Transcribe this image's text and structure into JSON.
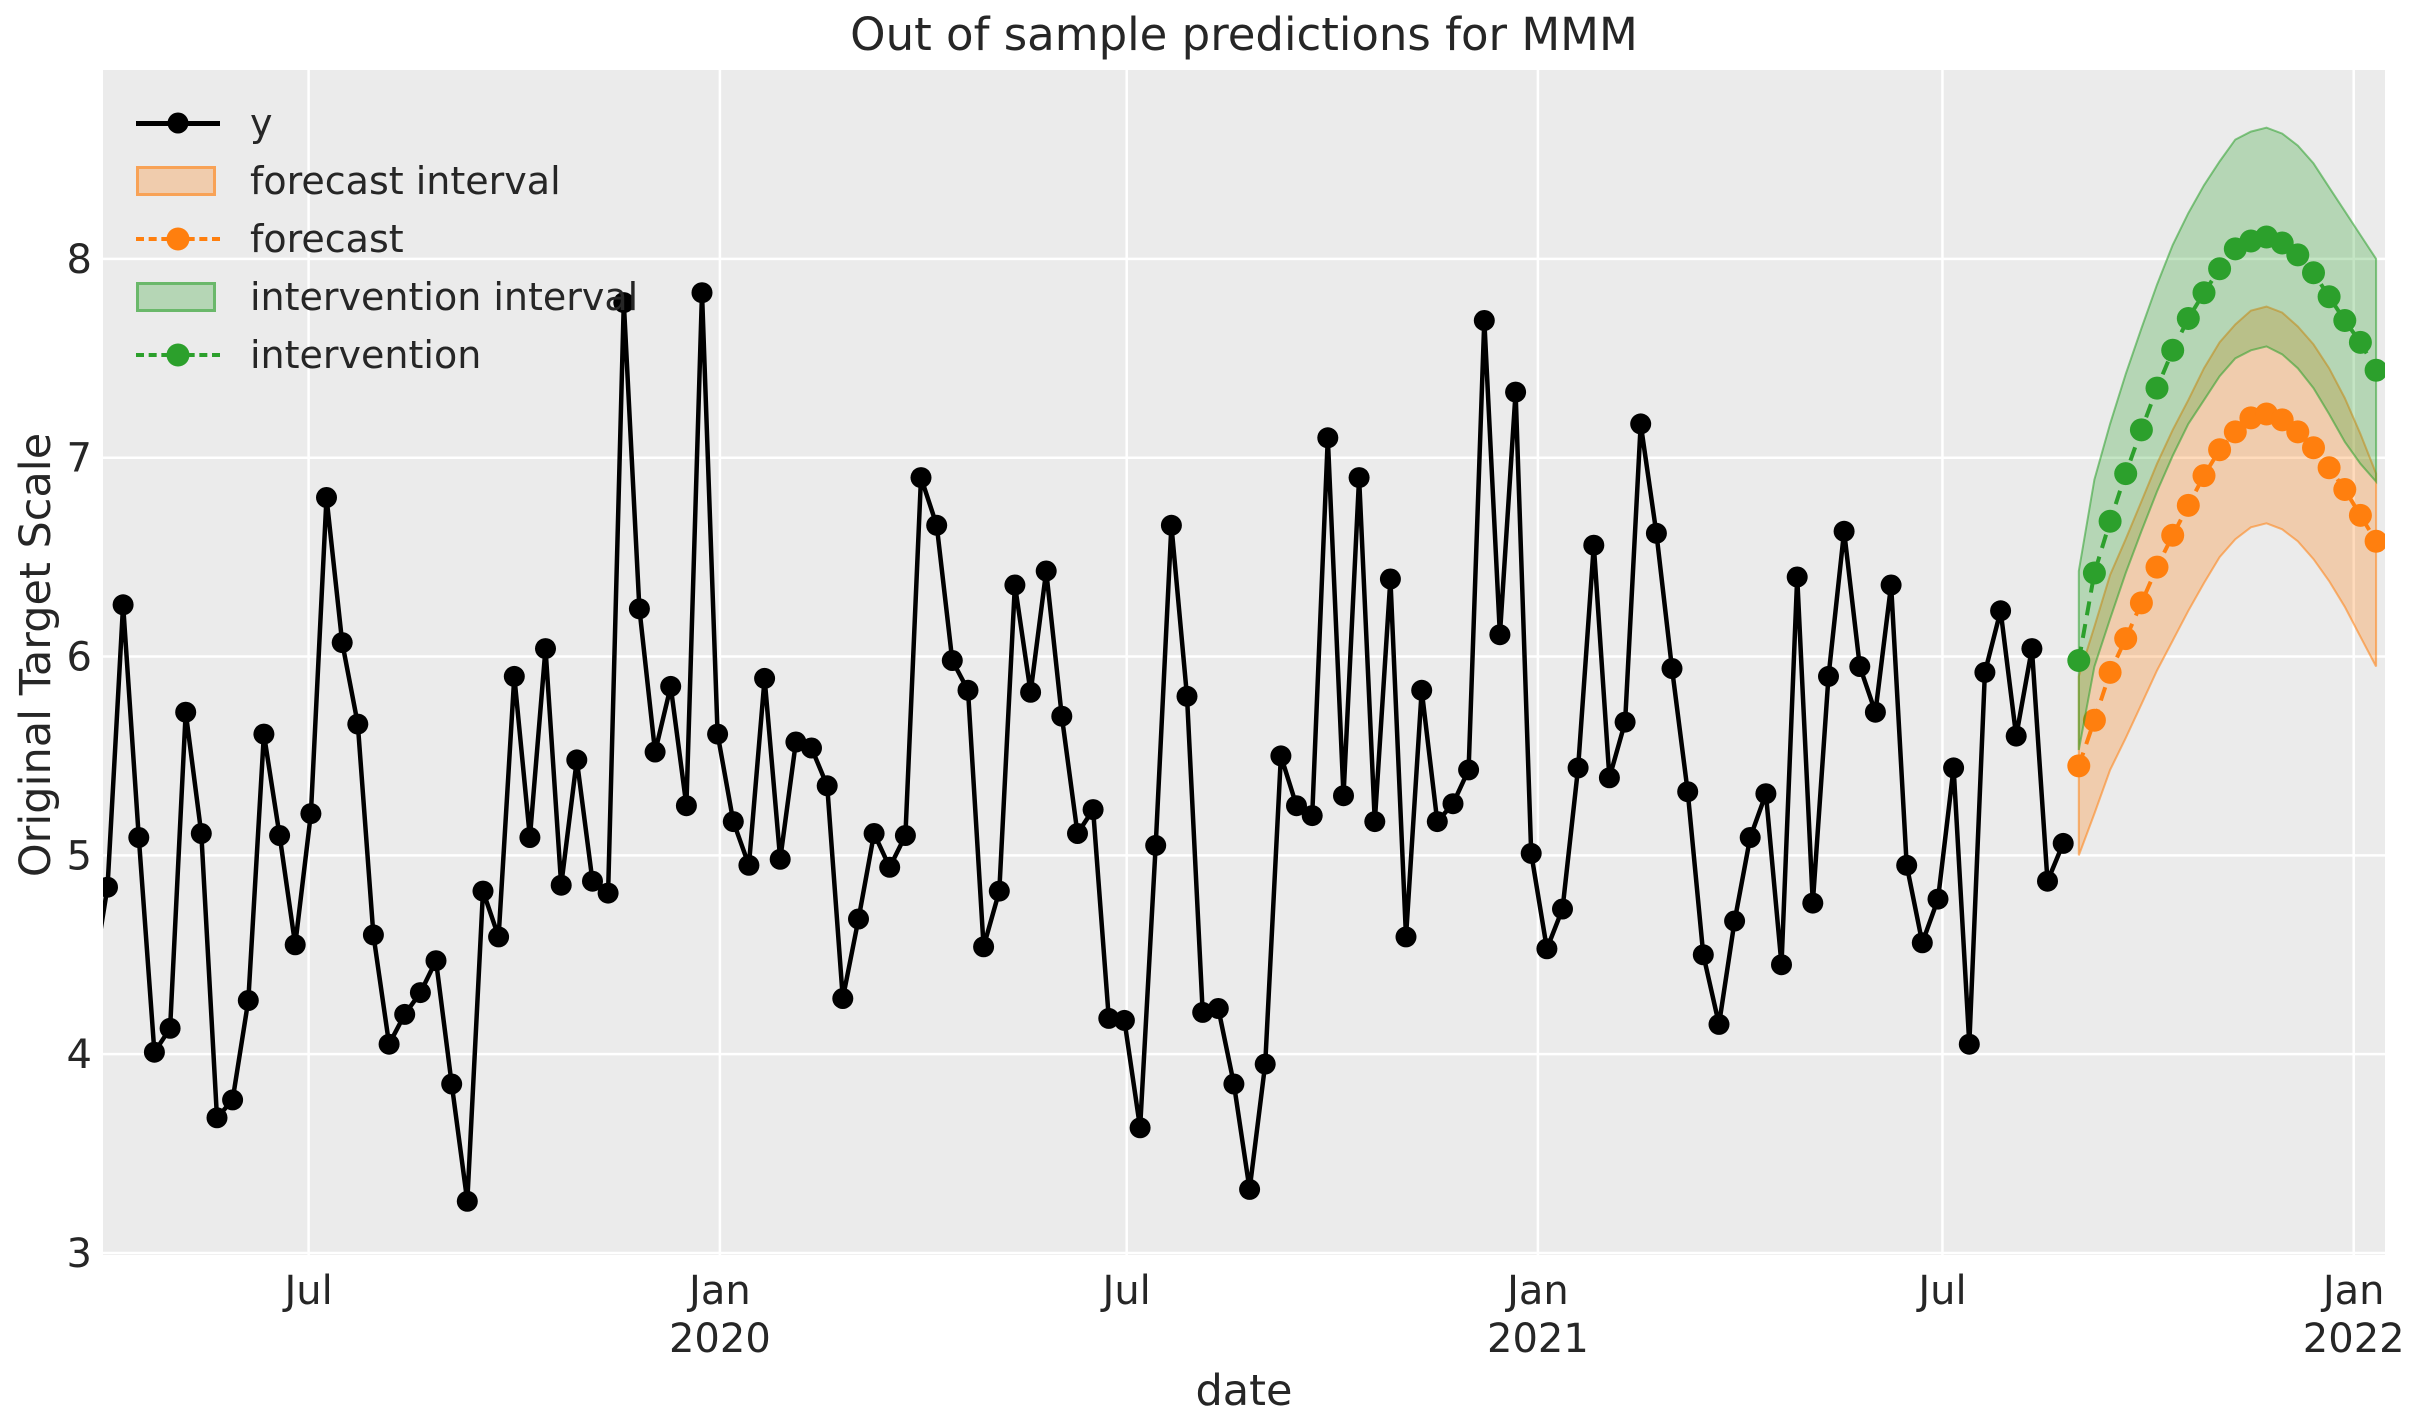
{
  "title": "Out of sample predictions for MMM",
  "chart_data": {
    "type": "line",
    "title": "Out of sample predictions for MMM",
    "xlabel": "date",
    "ylabel": "Original Target Scale",
    "colors": {
      "figure_background": "#ffffff",
      "plot_background": "#ebebeb",
      "grid": "#ffffff",
      "text": "#262626",
      "y_series": "#000000",
      "forecast": "#ff7f0e",
      "intervention": "#2ca02c"
    },
    "xlim": [
      "2019-03-31",
      "2022-01-15"
    ],
    "ylim": [
      2.99,
      8.95
    ],
    "y_ticks": [
      3,
      4,
      5,
      6,
      7,
      8
    ],
    "x_ticks": [
      {
        "date": "2019-07-01",
        "line1": "Jul",
        "line2": ""
      },
      {
        "date": "2020-01-01",
        "line1": "Jan",
        "line2": "2020"
      },
      {
        "date": "2020-07-01",
        "line1": "Jul",
        "line2": ""
      },
      {
        "date": "2021-01-01",
        "line1": "Jan",
        "line2": "2021"
      },
      {
        "date": "2021-07-01",
        "line1": "Jul",
        "line2": ""
      },
      {
        "date": "2022-01-01",
        "line1": "Jan",
        "line2": "2022"
      }
    ],
    "legend": [
      {
        "label": "y",
        "swatch": "line-marker",
        "color": "#000000"
      },
      {
        "label": "forecast interval",
        "swatch": "band",
        "color": "#ff7f0e"
      },
      {
        "label": "forecast",
        "swatch": "dashed-marker",
        "color": "#ff7f0e"
      },
      {
        "label": "intervention interval",
        "swatch": "band",
        "color": "#2ca02c"
      },
      {
        "label": "intervention",
        "swatch": "dashed-marker",
        "color": "#2ca02c"
      }
    ],
    "series": [
      {
        "name": "y",
        "type": "line",
        "color": "#000000",
        "marker": true,
        "dash": false,
        "start_date": "2019-04-02",
        "freq_days": 7,
        "lead_in": {
          "date": "2019-03-26",
          "value": 4.35
        },
        "values": [
          4.84,
          6.26,
          5.09,
          4.01,
          4.13,
          5.72,
          5.11,
          3.68,
          3.77,
          4.27,
          5.61,
          5.1,
          4.55,
          5.21,
          6.8,
          6.07,
          5.66,
          4.6,
          4.05,
          4.2,
          4.31,
          4.47,
          3.85,
          3.26,
          4.82,
          4.59,
          5.9,
          5.09,
          6.04,
          4.85,
          5.48,
          4.87,
          4.81,
          7.78,
          6.24,
          5.52,
          5.85,
          5.25,
          7.83,
          5.61,
          5.17,
          4.95,
          5.89,
          4.98,
          5.57,
          5.54,
          5.35,
          4.28,
          4.68,
          5.11,
          4.94,
          5.1,
          6.9,
          6.66,
          5.98,
          5.83,
          4.54,
          4.82,
          6.36,
          5.82,
          6.43,
          5.7,
          5.11,
          5.23,
          4.18,
          4.17,
          3.63,
          5.05,
          6.66,
          5.8,
          4.21,
          4.23,
          3.85,
          3.32,
          3.95,
          5.5,
          5.25,
          5.2,
          7.1,
          5.3,
          6.9,
          5.17,
          6.39,
          4.59,
          5.83,
          5.17,
          5.26,
          5.43,
          7.69,
          6.11,
          7.33,
          5.01,
          4.53,
          4.73,
          5.44,
          6.56,
          5.39,
          5.67,
          7.17,
          6.62,
          5.94,
          5.32,
          4.5,
          4.15,
          4.67,
          5.09,
          5.31,
          4.45,
          6.4,
          4.76,
          5.9,
          6.63,
          5.95,
          5.72,
          6.36,
          4.95,
          4.56,
          4.78,
          5.44,
          4.05,
          5.92,
          6.23,
          5.6,
          6.04,
          4.87,
          5.06
        ]
      },
      {
        "name": "forecast interval",
        "type": "band",
        "color": "#ff7f0e",
        "fill_opacity": 0.28,
        "edge_opacity": 0.55,
        "start_date": "2021-08-31",
        "freq_days": 7,
        "lower": [
          5.0,
          5.21,
          5.43,
          5.59,
          5.76,
          5.93,
          6.08,
          6.23,
          6.37,
          6.5,
          6.59,
          6.65,
          6.67,
          6.64,
          6.58,
          6.49,
          6.38,
          6.25,
          6.1,
          5.95
        ],
        "upper": [
          5.9,
          6.15,
          6.41,
          6.59,
          6.78,
          6.97,
          7.14,
          7.29,
          7.45,
          7.58,
          7.67,
          7.74,
          7.76,
          7.73,
          7.66,
          7.57,
          7.45,
          7.3,
          7.12,
          6.92
        ]
      },
      {
        "name": "forecast",
        "type": "line",
        "color": "#ff7f0e",
        "marker": true,
        "dash": true,
        "start_date": "2021-08-31",
        "freq_days": 7,
        "values": [
          5.45,
          5.68,
          5.92,
          6.09,
          6.27,
          6.45,
          6.61,
          6.76,
          6.91,
          7.04,
          7.13,
          7.2,
          7.22,
          7.19,
          7.13,
          7.05,
          6.95,
          6.84,
          6.71,
          6.58
        ]
      },
      {
        "name": "intervention interval",
        "type": "band",
        "color": "#2ca02c",
        "fill_opacity": 0.28,
        "edge_opacity": 0.55,
        "start_date": "2021-08-31",
        "freq_days": 7,
        "lower": [
          5.53,
          5.95,
          6.19,
          6.42,
          6.63,
          6.83,
          7.01,
          7.17,
          7.29,
          7.41,
          7.5,
          7.54,
          7.56,
          7.52,
          7.45,
          7.35,
          7.22,
          7.08,
          6.97,
          6.88
        ],
        "upper": [
          6.43,
          6.89,
          7.17,
          7.42,
          7.65,
          7.87,
          8.07,
          8.23,
          8.37,
          8.49,
          8.6,
          8.64,
          8.66,
          8.63,
          8.57,
          8.48,
          8.36,
          8.24,
          8.12,
          8.0
        ]
      },
      {
        "name": "intervention",
        "type": "line",
        "color": "#2ca02c",
        "marker": true,
        "dash": true,
        "start_date": "2021-08-31",
        "freq_days": 7,
        "values": [
          5.98,
          6.42,
          6.68,
          6.92,
          7.14,
          7.35,
          7.54,
          7.7,
          7.83,
          7.95,
          8.05,
          8.09,
          8.11,
          8.08,
          8.02,
          7.93,
          7.81,
          7.69,
          7.58,
          7.44
        ]
      }
    ]
  }
}
